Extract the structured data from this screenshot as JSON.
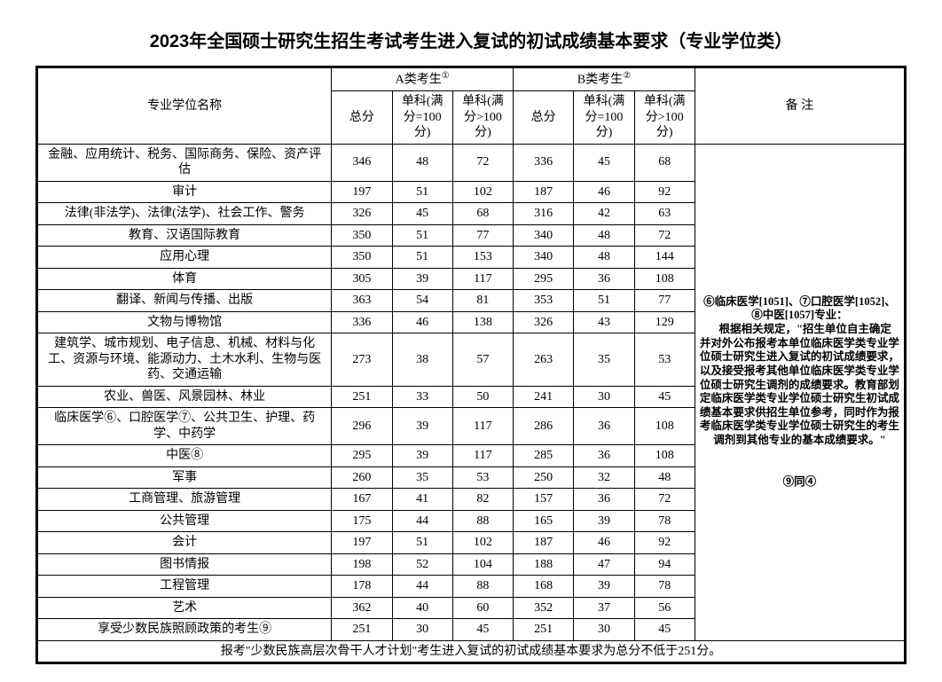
{
  "title": "2023年全国硕士研究生招生考试考生进入复试的初试成绩基本要求（专业学位类）",
  "head": {
    "major": "专业学位名称",
    "groupA": "A类考生",
    "groupB": "B类考生",
    "remark": "备  注",
    "total": "总分",
    "sub100": "单科(满分=100分)",
    "subOver100": "单科(满分>100分)"
  },
  "rows": [
    {
      "name": "金融、应用统计、税务、国际商务、保险、资产评估",
      "a": [
        346,
        48,
        72
      ],
      "b": [
        336,
        45,
        68
      ]
    },
    {
      "name": "审计",
      "a": [
        197,
        51,
        102
      ],
      "b": [
        187,
        46,
        92
      ]
    },
    {
      "name": "法律(非法学)、法律(法学)、社会工作、警务",
      "a": [
        326,
        45,
        68
      ],
      "b": [
        316,
        42,
        63
      ]
    },
    {
      "name": "教育、汉语国际教育",
      "a": [
        350,
        51,
        77
      ],
      "b": [
        340,
        48,
        72
      ]
    },
    {
      "name": "应用心理",
      "a": [
        350,
        51,
        153
      ],
      "b": [
        340,
        48,
        144
      ]
    },
    {
      "name": "体育",
      "a": [
        305,
        39,
        117
      ],
      "b": [
        295,
        36,
        108
      ]
    },
    {
      "name": "翻译、新闻与传播、出版",
      "a": [
        363,
        54,
        81
      ],
      "b": [
        353,
        51,
        77
      ]
    },
    {
      "name": "文物与博物馆",
      "a": [
        336,
        46,
        138
      ],
      "b": [
        326,
        43,
        129
      ]
    },
    {
      "name": "建筑学、城市规划、电子信息、机械、材料与化工、资源与环境、能源动力、土木水利、生物与医药、交通运输",
      "a": [
        273,
        38,
        57
      ],
      "b": [
        263,
        35,
        53
      ]
    },
    {
      "name": "农业、兽医、风景园林、林业",
      "a": [
        251,
        33,
        50
      ],
      "b": [
        241,
        30,
        45
      ]
    },
    {
      "name": "临床医学⑥、口腔医学⑦、公共卫生、护理、药学、中药学",
      "a": [
        296,
        39,
        117
      ],
      "b": [
        286,
        36,
        108
      ]
    },
    {
      "name": "中医⑧",
      "a": [
        295,
        39,
        117
      ],
      "b": [
        285,
        36,
        108
      ]
    },
    {
      "name": "军事",
      "a": [
        260,
        35,
        53
      ],
      "b": [
        250,
        32,
        48
      ]
    },
    {
      "name": "工商管理、旅游管理",
      "a": [
        167,
        41,
        82
      ],
      "b": [
        157,
        36,
        72
      ]
    },
    {
      "name": "公共管理",
      "a": [
        175,
        44,
        88
      ],
      "b": [
        165,
        39,
        78
      ]
    },
    {
      "name": "会计",
      "a": [
        197,
        51,
        102
      ],
      "b": [
        187,
        46,
        92
      ]
    },
    {
      "name": "图书情报",
      "a": [
        198,
        52,
        104
      ],
      "b": [
        188,
        47,
        94
      ]
    },
    {
      "name": "工程管理",
      "a": [
        178,
        44,
        88
      ],
      "b": [
        168,
        39,
        78
      ]
    },
    {
      "name": "艺术",
      "a": [
        362,
        40,
        60
      ],
      "b": [
        352,
        37,
        56
      ]
    },
    {
      "name": "享受少数民族照顾政策的考生⑨",
      "a": [
        251,
        30,
        45
      ],
      "b": [
        251,
        30,
        45
      ]
    }
  ],
  "remarkLines": [
    "⑥临床医学[1051]、⑦口腔医学[1052]、",
    "⑧中医[1057]专业：",
    "　根据相关规定，\"招生单位自主确定",
    "并对外公布报考本单位临床医学类专业学",
    "位硕士研究生进入复试的初试成绩要求，",
    "以及接受报考其他单位临床医学类专业学",
    "位硕士研究生调剂的成绩要求。教育部划",
    "定临床医学类专业学位硕士研究生初试成",
    "绩基本要求供招生单位参考，同时作为报",
    "考临床医学类专业学位硕士研究生的考生",
    "调剂到其他专业的基本成绩要求。\"",
    "",
    "⑨同④"
  ],
  "footnote": "报考\"少数民族高层次骨干人才计划\"考生进入复试的初试成绩基本要求为总分不低于251分。"
}
